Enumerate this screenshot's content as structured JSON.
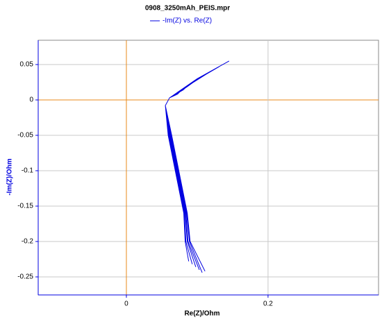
{
  "chart_data": {
    "type": "line",
    "title": "0908_3250mAh_PEIS.mpr",
    "x_label": "Re(Z)/Ohm",
    "y_label": "-Im(Z)/Ohm",
    "xlim": [
      -0.1245,
      0.356
    ],
    "ylim": [
      -0.2755,
      0.0843
    ],
    "xticks": [
      0,
      0.2
    ],
    "yticks": [
      0.05,
      0,
      -0.05,
      -0.1,
      -0.15,
      -0.2,
      -0.25
    ],
    "grid": true,
    "grid_color": "#c8c8c8",
    "zero_line_color": "#e8891a",
    "series": [
      {
        "name": "-Im(Z) vs. Re(Z)",
        "color": "#0000e0",
        "x": [
          0.145,
          0.1,
          0.061,
          0.055,
          0.059,
          0.069,
          0.081,
          0.083,
          0.088,
          null,
          0.131,
          0.095,
          0.061,
          0.055,
          0.06,
          0.07,
          0.082,
          0.084,
          0.093,
          null,
          0.117,
          0.09,
          0.061,
          0.055,
          0.061,
          0.071,
          0.083,
          0.086,
          0.098,
          null,
          0.103,
          0.085,
          0.061,
          0.055,
          0.062,
          0.072,
          0.084,
          0.087,
          0.103,
          null,
          0.089,
          0.08,
          0.061,
          0.055,
          0.063,
          0.073,
          0.085,
          0.089,
          0.107,
          null,
          0.076,
          0.072,
          0.061,
          0.055,
          0.064,
          0.074,
          0.086,
          0.09,
          0.111
        ],
        "values": [
          0.055,
          0.03,
          0.003,
          -0.008,
          -0.05,
          -0.1,
          -0.16,
          -0.2,
          -0.228,
          null,
          0.047,
          0.026,
          0.003,
          -0.008,
          -0.05,
          -0.1,
          -0.16,
          -0.2,
          -0.232,
          null,
          0.039,
          0.022,
          0.003,
          -0.008,
          -0.05,
          -0.1,
          -0.16,
          -0.2,
          -0.236,
          null,
          0.031,
          0.018,
          0.003,
          -0.008,
          -0.05,
          -0.1,
          -0.16,
          -0.2,
          -0.24,
          null,
          0.022,
          0.014,
          0.003,
          -0.008,
          -0.05,
          -0.1,
          -0.16,
          -0.2,
          -0.244,
          null,
          0.012,
          0.008,
          0.003,
          -0.008,
          -0.05,
          -0.1,
          -0.16,
          -0.2,
          -0.242
        ]
      }
    ]
  }
}
